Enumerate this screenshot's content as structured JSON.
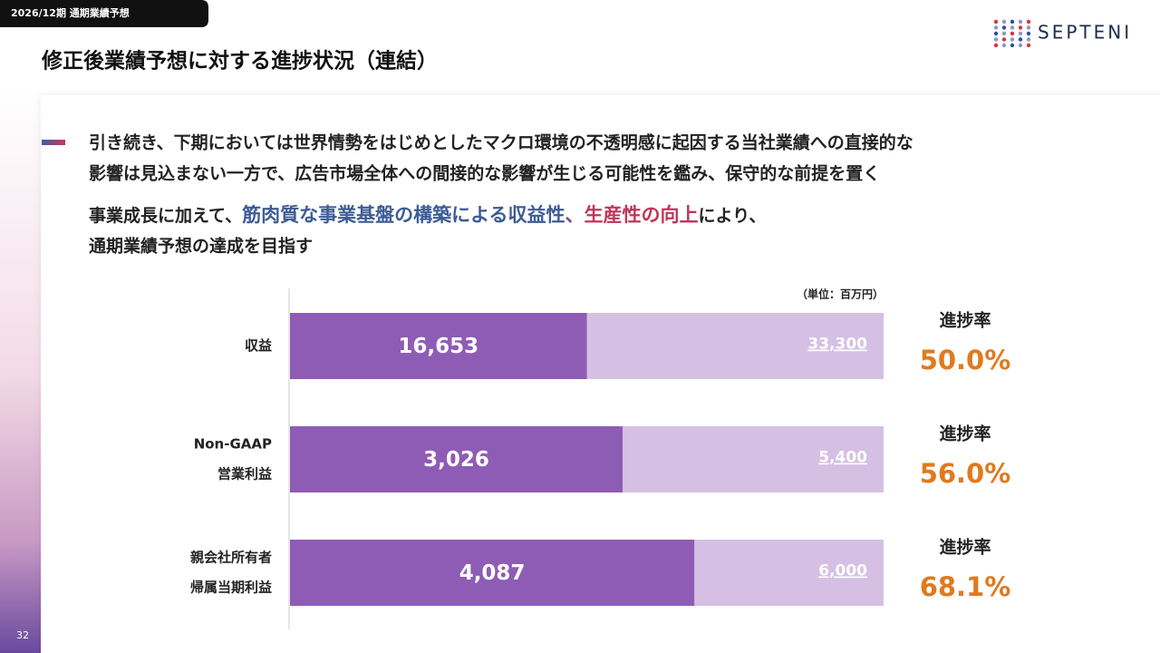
{
  "header_tag": "2026/12期 通期業績予想",
  "title": "修正後業績予想に対する進捗状況（連結）",
  "logo": "SEPTENI",
  "bullet": {
    "lines": [
      "引き続き、下期においては世界情勢をはじめとしたマクロ環境の不透明感に起因する当社業績への直接的な",
      "影響は見込まない一方で、広告市場全体への間接的な影響が生じる可能性を鑑み、保守的な前提を置く"
    ]
  },
  "message": {
    "line1": [
      "事業成長に加えて、",
      "筋肉質な事業基盤の構築による収益性",
      "、",
      "生産性の向上",
      "により、"
    ],
    "line2": "通期業績予想の達成を目指す"
  },
  "page_number": "32",
  "chart_data": {
    "type": "progress-bar",
    "unit_note": "（単位：百万円）",
    "categories": [
      [
        "収益"
      ],
      [
        "Non-GAAP",
        "営業利益"
      ],
      [
        "親会社所有者",
        "帰属当期利益"
      ]
    ],
    "values": [
      16653,
      3026,
      4087
    ],
    "value_labels": [
      "16,653",
      "3,026",
      "4,087"
    ],
    "targets": [
      33300,
      5400,
      6000
    ],
    "target_labels": [
      "33,300",
      "5,400",
      "6,000"
    ],
    "color": "#8e5cb5",
    "target_color": "#d5c0e4",
    "rate_title": "進捗率",
    "rates": [
      50.0,
      56.0,
      68.1
    ],
    "rate_labels": [
      "50.0%",
      "56.0%",
      "68.1%"
    ],
    "rate_color": "#e07a1f"
  }
}
